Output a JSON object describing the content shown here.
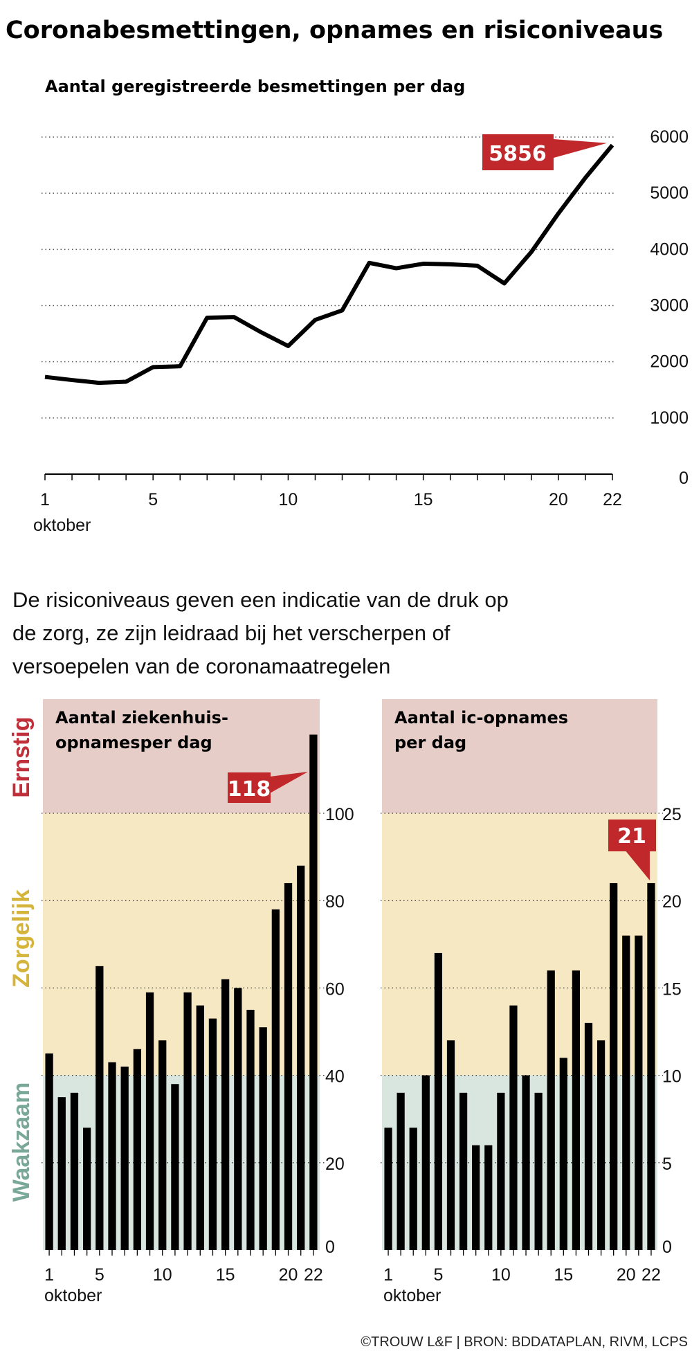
{
  "title": "Coronabesmettingen, opnames en risiconiveaus",
  "description_lines": [
    "De risiconiveaus geven een indicatie van de druk op",
    "de zorg, ze zijn leidraad bij het verscherpen of",
    "versoepelen van de coronamaatregelen"
  ],
  "levels": {
    "ernstig": {
      "label": "Ernstig",
      "color": "#c0303a",
      "bg": "#e6cdc8"
    },
    "zorgelijk": {
      "label": "Zorgelijk",
      "color": "#d4b43a",
      "bg": "#f6e8c3"
    },
    "waakzaam": {
      "label": "Waakzaam",
      "color": "#7aa898",
      "bg": "#d9e6df"
    }
  },
  "footer": "©TROUW L&F | BRON: BDDATAPLAN, RIVM, LCPS",
  "colors": {
    "accent": "#c0282b",
    "bars": "#000000"
  },
  "chart_data": [
    {
      "type": "line",
      "title": "Aantal geregistreerde besmettingen per dag",
      "x": [
        1,
        2,
        3,
        4,
        5,
        6,
        7,
        8,
        9,
        10,
        11,
        12,
        13,
        14,
        15,
        16,
        17,
        18,
        19,
        20,
        21,
        22
      ],
      "x_tick_labels": [
        "1",
        "5",
        "10",
        "15",
        "20",
        "22"
      ],
      "x_sublabel": "oktober",
      "values": [
        1730,
        1675,
        1625,
        1645,
        1905,
        1920,
        2785,
        2795,
        2525,
        2280,
        2745,
        2915,
        3760,
        3665,
        3745,
        3735,
        3710,
        3395,
        3955,
        4640,
        5275,
        5856
      ],
      "ylim": [
        0,
        6000
      ],
      "y_ticks": [
        "0",
        "1000",
        "2000",
        "3000",
        "4000",
        "5000",
        "6000"
      ],
      "grid": true,
      "annotation": "5856"
    },
    {
      "type": "bar",
      "title_lines": [
        "Aantal ziekenhuis-",
        "opnamesper dag"
      ],
      "x": [
        1,
        2,
        3,
        4,
        5,
        6,
        7,
        8,
        9,
        10,
        11,
        12,
        13,
        14,
        15,
        16,
        17,
        18,
        19,
        20,
        21,
        22
      ],
      "x_tick_labels": [
        "1",
        "5",
        "10",
        "15",
        "20",
        "22"
      ],
      "x_sublabel": "oktober",
      "values": [
        45,
        35,
        36,
        28,
        65,
        43,
        42,
        46,
        59,
        48,
        38,
        59,
        56,
        53,
        62,
        60,
        55,
        51,
        78,
        84,
        88,
        118
      ],
      "ylim": [
        0,
        120
      ],
      "y_ticks": [
        "0",
        "20",
        "40",
        "60",
        "80",
        "100"
      ],
      "level_thresholds": {
        "waakzaam": [
          0,
          40
        ],
        "zorgelijk": [
          40,
          100
        ],
        "ernstig": [
          100,
          120
        ]
      },
      "annotation": "118"
    },
    {
      "type": "bar",
      "title_lines": [
        "Aantal ic-opnames",
        "per dag"
      ],
      "x": [
        1,
        2,
        3,
        4,
        5,
        6,
        7,
        8,
        9,
        10,
        11,
        12,
        13,
        14,
        15,
        16,
        17,
        18,
        19,
        20,
        21,
        22
      ],
      "x_tick_labels": [
        "1",
        "5",
        "10",
        "15",
        "20",
        "22"
      ],
      "x_sublabel": "oktober",
      "values": [
        7,
        9,
        7,
        10,
        17,
        12,
        9,
        6,
        6,
        9,
        14,
        10,
        9,
        16,
        11,
        16,
        13,
        12,
        21,
        18,
        18,
        21
      ],
      "ylim": [
        0,
        30
      ],
      "y_ticks": [
        "0",
        "5",
        "10",
        "15",
        "20",
        "25"
      ],
      "level_thresholds": {
        "waakzaam": [
          0,
          10
        ],
        "zorgelijk": [
          10,
          25
        ],
        "ernstig": [
          25,
          30
        ]
      },
      "annotation": "21"
    }
  ]
}
